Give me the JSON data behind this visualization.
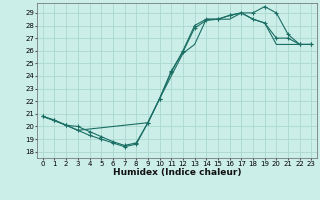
{
  "xlabel": "Humidex (Indice chaleur)",
  "bg_color": "#cceee8",
  "grid_color": "#aad8d0",
  "line_color": "#1a6e64",
  "xlim": [
    -0.5,
    23.5
  ],
  "ylim": [
    17.5,
    29.8
  ],
  "xticks": [
    0,
    1,
    2,
    3,
    4,
    5,
    6,
    7,
    8,
    9,
    10,
    11,
    12,
    13,
    14,
    15,
    16,
    17,
    18,
    19,
    20,
    21,
    22,
    23
  ],
  "yticks": [
    18,
    19,
    20,
    21,
    22,
    23,
    24,
    25,
    26,
    27,
    28,
    29
  ],
  "line1_x": [
    0,
    1,
    2,
    3,
    4,
    5,
    6,
    7,
    8,
    9,
    10,
    11,
    12,
    13,
    14,
    15,
    16,
    17,
    18,
    19,
    20,
    21,
    22,
    23
  ],
  "line1_y": [
    20.8,
    20.5,
    20.1,
    20.0,
    19.6,
    19.2,
    18.8,
    18.5,
    18.7,
    20.3,
    22.2,
    24.3,
    26.0,
    28.0,
    28.5,
    28.5,
    28.8,
    29.0,
    29.0,
    29.5,
    29.0,
    27.3,
    26.5,
    26.5
  ],
  "line2_x": [
    0,
    1,
    2,
    3,
    4,
    5,
    6,
    7,
    8,
    9,
    10,
    11,
    12,
    13,
    14,
    15,
    16,
    17,
    18,
    19,
    20,
    21,
    22,
    23
  ],
  "line2_y": [
    20.8,
    20.5,
    20.1,
    19.7,
    19.3,
    19.0,
    18.7,
    18.4,
    18.6,
    20.3,
    22.2,
    24.4,
    25.9,
    27.8,
    28.4,
    28.5,
    28.8,
    29.0,
    28.5,
    28.2,
    27.0,
    27.0,
    26.5,
    26.5
  ],
  "line3_x": [
    0,
    2,
    3,
    9,
    10,
    12,
    13,
    14,
    15,
    16,
    17,
    18,
    19,
    20,
    22,
    23
  ],
  "line3_y": [
    20.8,
    20.1,
    19.7,
    20.3,
    22.2,
    25.8,
    26.5,
    28.5,
    28.5,
    28.5,
    29.0,
    28.5,
    28.2,
    26.5,
    26.5,
    26.5
  ],
  "fig_width": 3.2,
  "fig_height": 2.0,
  "dpi": 100
}
